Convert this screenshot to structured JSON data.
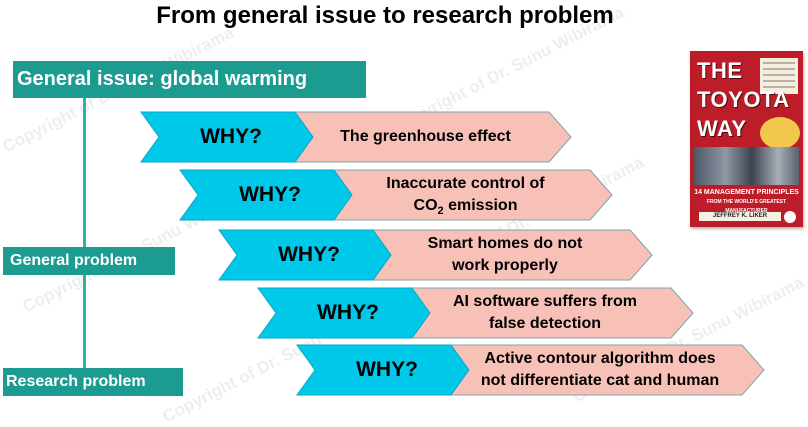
{
  "title": "From general issue to research problem",
  "watermark": "Copyright of Dr. Sunu Wibirama",
  "labels": {
    "general_issue": "General issue: global warming",
    "general_problem": "General problem",
    "research_problem": "Research problem"
  },
  "rows": [
    {
      "why": "WHY?",
      "reason_lines": [
        "The greenhouse effect"
      ]
    },
    {
      "why": "WHY?",
      "reason_lines": [
        "Inaccurate control of",
        "CO2 emission"
      ]
    },
    {
      "why": "WHY?",
      "reason_lines": [
        "Smart homes do not",
        "work properly"
      ]
    },
    {
      "why": "WHY?",
      "reason_lines": [
        "AI software suffers from",
        "false detection"
      ]
    },
    {
      "why": "WHY?",
      "reason_lines": [
        "Active contour algorithm does",
        "not differentiate cat and human"
      ]
    }
  ],
  "book": {
    "title_lines": [
      "THE",
      "TOYOTA",
      "WAY"
    ],
    "subtitle_lines": [
      "14 MANAGEMENT PRINCIPLES",
      "FROM THE WORLD'S GREATEST MANUFACTURER"
    ],
    "author": "JEFFREY K. LIKER"
  },
  "colors": {
    "teal_label": "#1c9c90",
    "line": "#29b5a4",
    "why_fill": "#00c8e8",
    "reason_fill": "#f8c1b8",
    "reason_stroke": "#7fa3a6",
    "book_red": "#bd1d28"
  }
}
